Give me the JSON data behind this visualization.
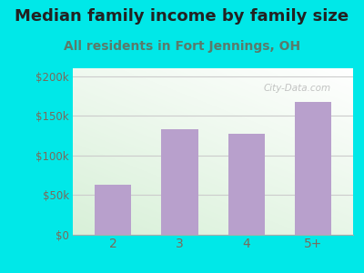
{
  "title": "Median family income by family size",
  "subtitle": "All residents in Fort Jennings, OH",
  "categories": [
    "2",
    "3",
    "4",
    "5+"
  ],
  "values": [
    63000,
    133000,
    127000,
    168000
  ],
  "bar_color": "#b8a0cc",
  "title_fontsize": 13,
  "subtitle_fontsize": 10,
  "subtitle_color": "#5a7a6a",
  "tick_label_color": "#7a6a5a",
  "ytick_labels": [
    "$0",
    "$50k",
    "$100k",
    "$150k",
    "$200k"
  ],
  "ytick_values": [
    0,
    50000,
    100000,
    150000,
    200000
  ],
  "ylim": [
    0,
    210000
  ],
  "outer_bg": "#00e8e8",
  "inner_bg_topleft": "#d8f0d8",
  "inner_bg_bottomright": "#ffffff",
  "grid_color": "#cccccc",
  "watermark": "City-Data.com"
}
